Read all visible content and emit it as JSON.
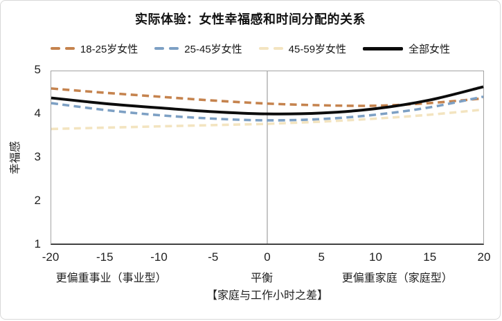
{
  "chart_data": {
    "type": "line",
    "title": "实际体验：女性幸福感和时间分配的关系",
    "xlabel": "【家庭与工作小时之差】",
    "ylabel": "幸福感",
    "xlim": [
      -20,
      20
    ],
    "ylim": [
      1,
      5
    ],
    "xticks": [
      "-20",
      "-15",
      "-10",
      "-5",
      "0",
      "5",
      "10",
      "15",
      "20"
    ],
    "yticks": [
      "5",
      "4",
      "3",
      "2",
      "1"
    ],
    "ytick_values": [
      5,
      4,
      3,
      2,
      1
    ],
    "xtick_values": [
      -20,
      -15,
      -10,
      -5,
      0,
      5,
      10,
      15,
      20
    ],
    "grid": "single vertical gridline at x=0, no horizontal gridlines",
    "gridline_x": 0,
    "legend_position": "top",
    "x": [
      -20,
      -15,
      -10,
      -5,
      0,
      5,
      10,
      15,
      20
    ],
    "series": [
      {
        "name": "18-25岁女性",
        "color": "#c5834e",
        "style": "dashed",
        "values": [
          4.6,
          4.5,
          4.41,
          4.32,
          4.25,
          4.21,
          4.2,
          4.26,
          4.37
        ]
      },
      {
        "name": "25-45岁女性",
        "color": "#7da0c4",
        "style": "dashed",
        "values": [
          4.26,
          4.1,
          3.98,
          3.9,
          3.86,
          3.89,
          3.99,
          4.16,
          4.41
        ]
      },
      {
        "name": "45-59岁女性",
        "color": "#f3e4c0",
        "style": "dashed",
        "values": [
          3.66,
          3.69,
          3.72,
          3.75,
          3.78,
          3.83,
          3.9,
          3.99,
          4.11
        ]
      },
      {
        "name": "全部女性",
        "color": "#0c0c0c",
        "style": "solid",
        "values": [
          4.38,
          4.25,
          4.15,
          4.06,
          4.01,
          4.03,
          4.13,
          4.33,
          4.64
        ]
      }
    ],
    "zone_labels": [
      {
        "text": "更偏重事业（事业型）",
        "x": -14.4
      },
      {
        "text": "平衡",
        "x": -0.5
      },
      {
        "text": "更偏重家庭（家庭型）",
        "x": 12
      }
    ]
  },
  "colors": {
    "gridline": "#a6a6a6",
    "plot_border": "#a3a3a3",
    "axis_line": "#404040",
    "text": "#1f1f1f",
    "frame_border": "#d8d8d8"
  }
}
